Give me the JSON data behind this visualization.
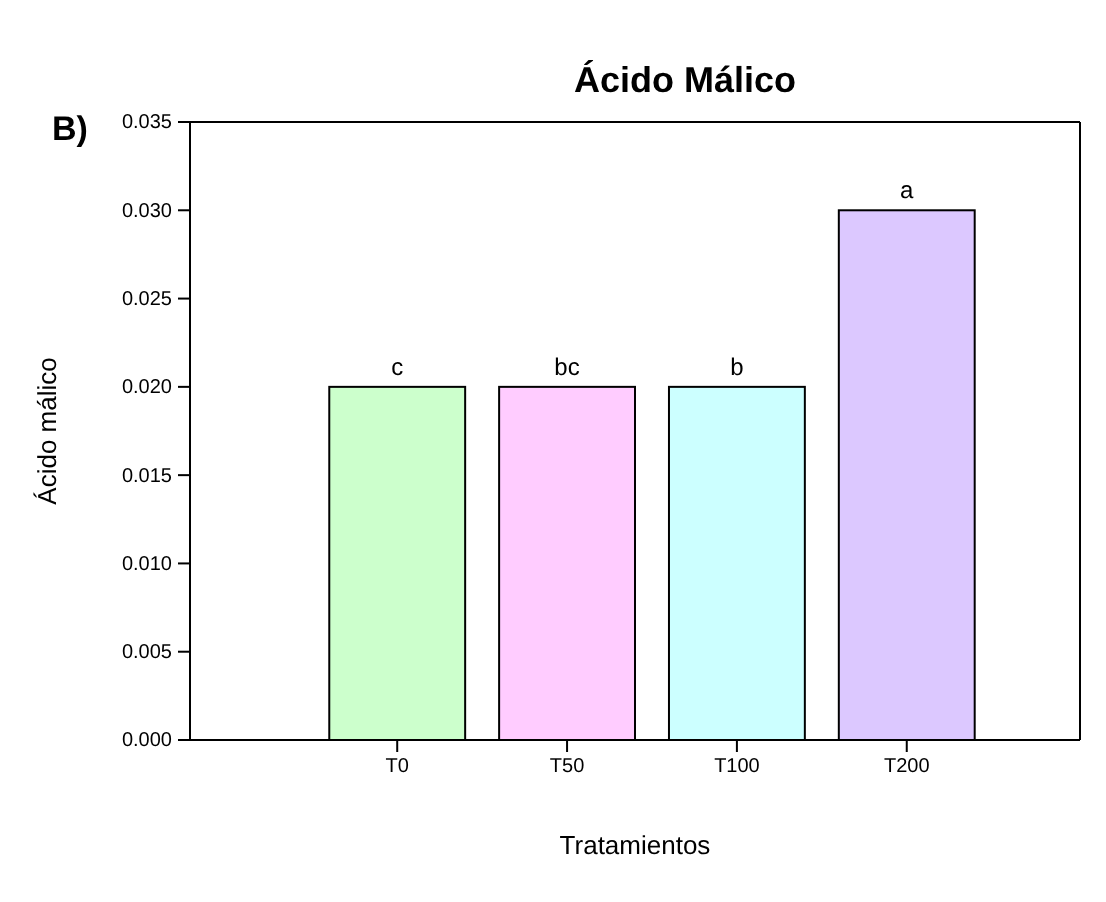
{
  "chart_data": {
    "type": "bar",
    "title": "Ácido Málico",
    "xlabel": "Tratamientos",
    "ylabel": "Ácido málico",
    "categories": [
      "T0",
      "T50",
      "T100",
      "T200"
    ],
    "values": [
      0.02,
      0.02,
      0.02,
      0.03
    ],
    "colors": [
      "#ccffcc",
      "#ffccff",
      "#ccffff",
      "#dcc8ff"
    ],
    "ylim": [
      0,
      0.035
    ],
    "yticks": [
      {
        "value": 0,
        "label": "0.000"
      },
      {
        "value": 0.005,
        "label": "0.005"
      },
      {
        "value": 0.01,
        "label": "0.010"
      },
      {
        "value": 0.015,
        "label": "0.015"
      },
      {
        "value": 0.02,
        "label": "0.020"
      },
      {
        "value": 0.025,
        "label": "0.025"
      },
      {
        "value": 0.03,
        "label": "0.030"
      },
      {
        "value": 0.035,
        "label": "0.035"
      }
    ],
    "grid": false,
    "annotations": [
      "B)",
      {
        "text": "c",
        "x": "T0",
        "y": 0.02
      },
      {
        "text": "bc",
        "x": "T50",
        "y": 0.02
      },
      {
        "text": "b",
        "x": "T100",
        "y": 0.02
      },
      {
        "text": "a",
        "x": "T200",
        "y": 0.03
      }
    ]
  }
}
